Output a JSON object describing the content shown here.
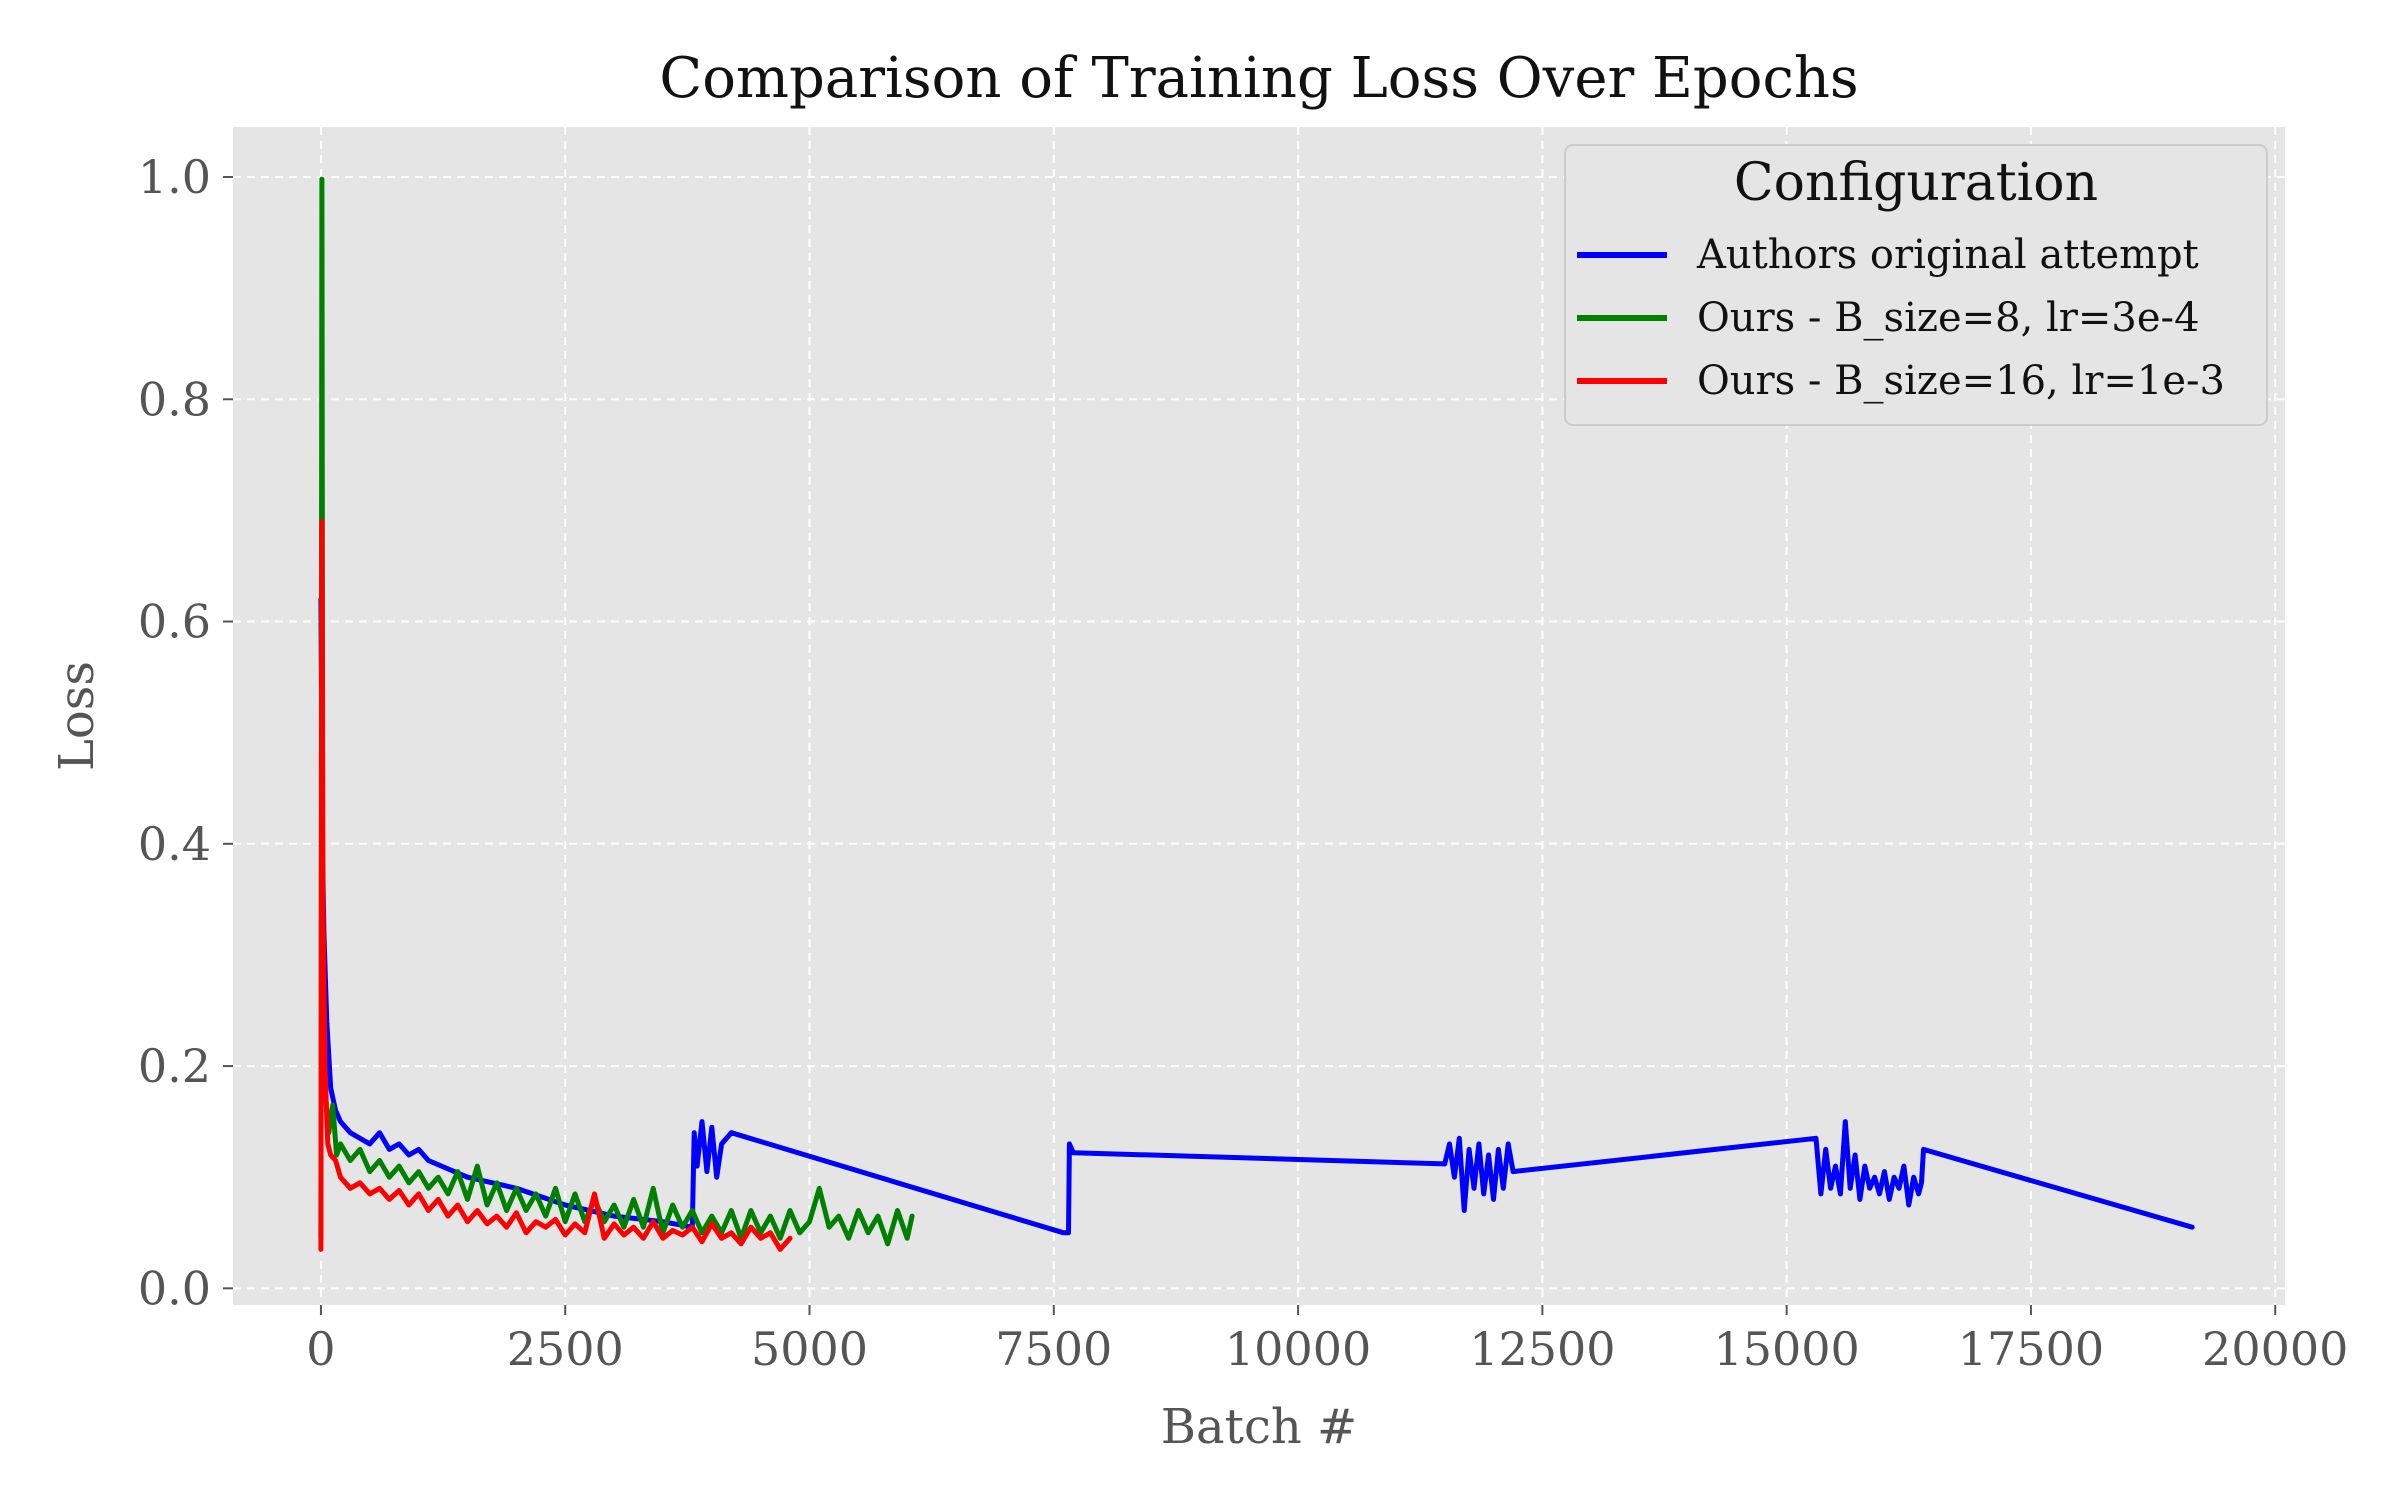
{
  "chart_data": {
    "type": "line",
    "title": "Comparison of Training Loss Over Epochs",
    "xlabel": "Batch #",
    "ylabel": "Loss",
    "xlim": [
      -900,
      20100
    ],
    "ylim": [
      -0.015,
      1.045
    ],
    "xticks": [
      0,
      2500,
      5000,
      7500,
      10000,
      12500,
      15000,
      17500,
      20000
    ],
    "yticks": [
      0.0,
      0.2,
      0.4,
      0.6,
      0.8,
      1.0
    ],
    "ytick_labels": [
      "0.0",
      "0.2",
      "0.4",
      "0.6",
      "0.8",
      "1.0"
    ],
    "grid": true,
    "legend": {
      "title": "Configuration",
      "placement": "top-right"
    },
    "series": [
      {
        "name": "Authors original attempt",
        "color": "#0000ff",
        "x": [
          0,
          15,
          30,
          60,
          100,
          150,
          200,
          300,
          400,
          500,
          600,
          700,
          800,
          900,
          1000,
          1100,
          1500,
          2000,
          2500,
          3000,
          3500,
          3800,
          3820,
          3850,
          3900,
          3950,
          4000,
          4050,
          4100,
          4150,
          4200,
          7600,
          7650,
          7660,
          7700,
          11500,
          11550,
          11600,
          11650,
          11700,
          11750,
          11800,
          11850,
          11900,
          11950,
          12000,
          12050,
          12100,
          12150,
          12200,
          15300,
          15350,
          15400,
          15450,
          15500,
          15550,
          15600,
          15650,
          15700,
          15750,
          15800,
          15850,
          15900,
          15950,
          16000,
          16050,
          16100,
          16150,
          16200,
          16250,
          16300,
          16350,
          16380,
          16400,
          19150
        ],
        "y": [
          0.62,
          0.4,
          0.32,
          0.24,
          0.18,
          0.16,
          0.15,
          0.14,
          0.135,
          0.13,
          0.14,
          0.125,
          0.13,
          0.12,
          0.125,
          0.115,
          0.1,
          0.09,
          0.075,
          0.065,
          0.06,
          0.055,
          0.14,
          0.11,
          0.15,
          0.105,
          0.145,
          0.1,
          0.13,
          0.135,
          0.14,
          0.05,
          0.05,
          0.13,
          0.122,
          0.112,
          0.13,
          0.1,
          0.135,
          0.07,
          0.125,
          0.09,
          0.13,
          0.085,
          0.12,
          0.08,
          0.125,
          0.09,
          0.13,
          0.105,
          0.135,
          0.085,
          0.125,
          0.09,
          0.11,
          0.085,
          0.15,
          0.09,
          0.12,
          0.08,
          0.11,
          0.09,
          0.1,
          0.085,
          0.105,
          0.08,
          0.1,
          0.09,
          0.11,
          0.075,
          0.1,
          0.085,
          0.095,
          0.125,
          0.055
        ]
      },
      {
        "name": "Ours - B_size=8, lr=3e-4",
        "color": "#008000",
        "x": [
          0,
          10,
          20,
          40,
          80,
          120,
          160,
          200,
          300,
          400,
          500,
          600,
          700,
          800,
          900,
          1000,
          1100,
          1200,
          1300,
          1400,
          1500,
          1600,
          1700,
          1800,
          1900,
          2000,
          2100,
          2200,
          2300,
          2400,
          2500,
          2600,
          2700,
          2800,
          2900,
          3000,
          3100,
          3200,
          3300,
          3400,
          3500,
          3600,
          3700,
          3800,
          3900,
          4000,
          4100,
          4200,
          4300,
          4400,
          4500,
          4600,
          4700,
          4800,
          4900,
          5000,
          5100,
          5200,
          5300,
          5400,
          5500,
          5600,
          5700,
          5800,
          5900,
          6000,
          6050
        ],
        "y": [
          0.045,
          0.998,
          0.3,
          0.18,
          0.14,
          0.165,
          0.12,
          0.13,
          0.115,
          0.125,
          0.105,
          0.115,
          0.1,
          0.11,
          0.095,
          0.105,
          0.09,
          0.1,
          0.085,
          0.105,
          0.08,
          0.11,
          0.075,
          0.095,
          0.07,
          0.09,
          0.07,
          0.085,
          0.065,
          0.09,
          0.06,
          0.085,
          0.06,
          0.08,
          0.06,
          0.075,
          0.055,
          0.08,
          0.055,
          0.09,
          0.05,
          0.075,
          0.055,
          0.07,
          0.05,
          0.065,
          0.05,
          0.07,
          0.045,
          0.07,
          0.05,
          0.065,
          0.045,
          0.07,
          0.05,
          0.06,
          0.09,
          0.055,
          0.065,
          0.045,
          0.07,
          0.05,
          0.065,
          0.04,
          0.07,
          0.045,
          0.065
        ]
      },
      {
        "name": "Ours - B_size=16, lr=1e-3",
        "color": "#ff0000",
        "x": [
          0,
          10,
          20,
          40,
          70,
          100,
          150,
          200,
          300,
          400,
          500,
          600,
          700,
          800,
          900,
          1000,
          1100,
          1200,
          1300,
          1400,
          1500,
          1600,
          1700,
          1800,
          1900,
          2000,
          2100,
          2200,
          2300,
          2400,
          2500,
          2600,
          2700,
          2800,
          2900,
          3000,
          3100,
          3200,
          3300,
          3400,
          3500,
          3600,
          3700,
          3800,
          3900,
          4000,
          4100,
          4200,
          4300,
          4400,
          4500,
          4600,
          4700,
          4800
        ],
        "y": [
          0.035,
          0.69,
          0.35,
          0.2,
          0.13,
          0.12,
          0.115,
          0.1,
          0.09,
          0.095,
          0.085,
          0.09,
          0.08,
          0.088,
          0.075,
          0.085,
          0.07,
          0.08,
          0.065,
          0.075,
          0.06,
          0.07,
          0.058,
          0.065,
          0.055,
          0.068,
          0.05,
          0.06,
          0.055,
          0.062,
          0.048,
          0.058,
          0.05,
          0.085,
          0.045,
          0.058,
          0.048,
          0.055,
          0.045,
          0.06,
          0.045,
          0.052,
          0.048,
          0.055,
          0.042,
          0.058,
          0.045,
          0.05,
          0.04,
          0.055,
          0.045,
          0.05,
          0.035,
          0.045
        ]
      }
    ]
  }
}
